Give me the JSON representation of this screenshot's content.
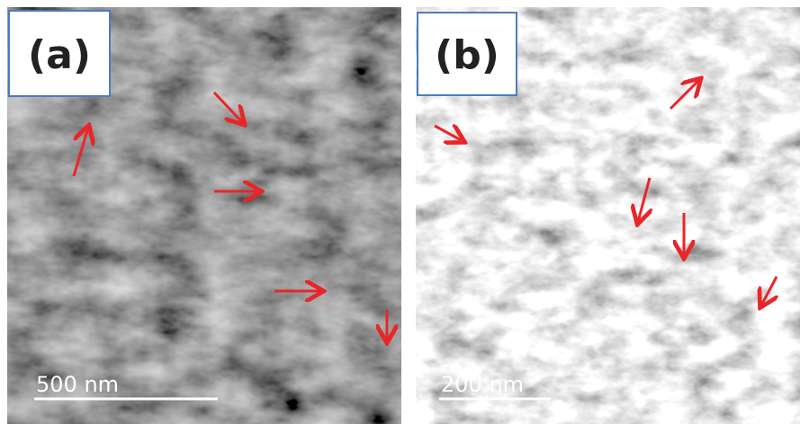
{
  "panels": [
    {
      "label": "(a)",
      "scale_bar": "500 nm"
    },
    {
      "label": "(b)",
      "scale_bar": "200 nm"
    }
  ]
}
